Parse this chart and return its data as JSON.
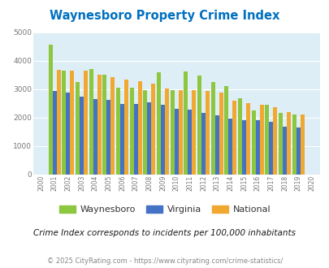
{
  "title": "Waynesboro Property Crime Index",
  "subtitle": "Crime Index corresponds to incidents per 100,000 inhabitants",
  "footer": "© 2025 CityRating.com - https://www.cityrating.com/crime-statistics/",
  "years": [
    2000,
    2001,
    2002,
    2003,
    2004,
    2005,
    2006,
    2007,
    2008,
    2009,
    2010,
    2011,
    2012,
    2013,
    2014,
    2015,
    2016,
    2017,
    2018,
    2019,
    2020
  ],
  "waynesboro": [
    0,
    4550,
    3650,
    3250,
    3700,
    3500,
    3050,
    3050,
    2950,
    3580,
    2970,
    3630,
    3480,
    3250,
    3100,
    2670,
    2250,
    2430,
    2150,
    2100,
    0
  ],
  "virginia": [
    0,
    2920,
    2870,
    2720,
    2640,
    2610,
    2480,
    2480,
    2520,
    2430,
    2310,
    2260,
    2160,
    2060,
    1970,
    1890,
    1890,
    1830,
    1660,
    1640,
    0
  ],
  "national": [
    0,
    3670,
    3650,
    3640,
    3510,
    3430,
    3340,
    3260,
    3200,
    3030,
    2950,
    2950,
    2940,
    2870,
    2590,
    2490,
    2450,
    2360,
    2200,
    2110,
    0
  ],
  "waynesboro_color": "#8dc63f",
  "virginia_color": "#4472c4",
  "national_color": "#f0a830",
  "bg_color": "#ddeef6",
  "title_color": "#0070c0",
  "subtitle_color": "#1a1a1a",
  "footer_color": "#888888",
  "ylim": [
    0,
    5000
  ],
  "yticks": [
    0,
    1000,
    2000,
    3000,
    4000,
    5000
  ]
}
